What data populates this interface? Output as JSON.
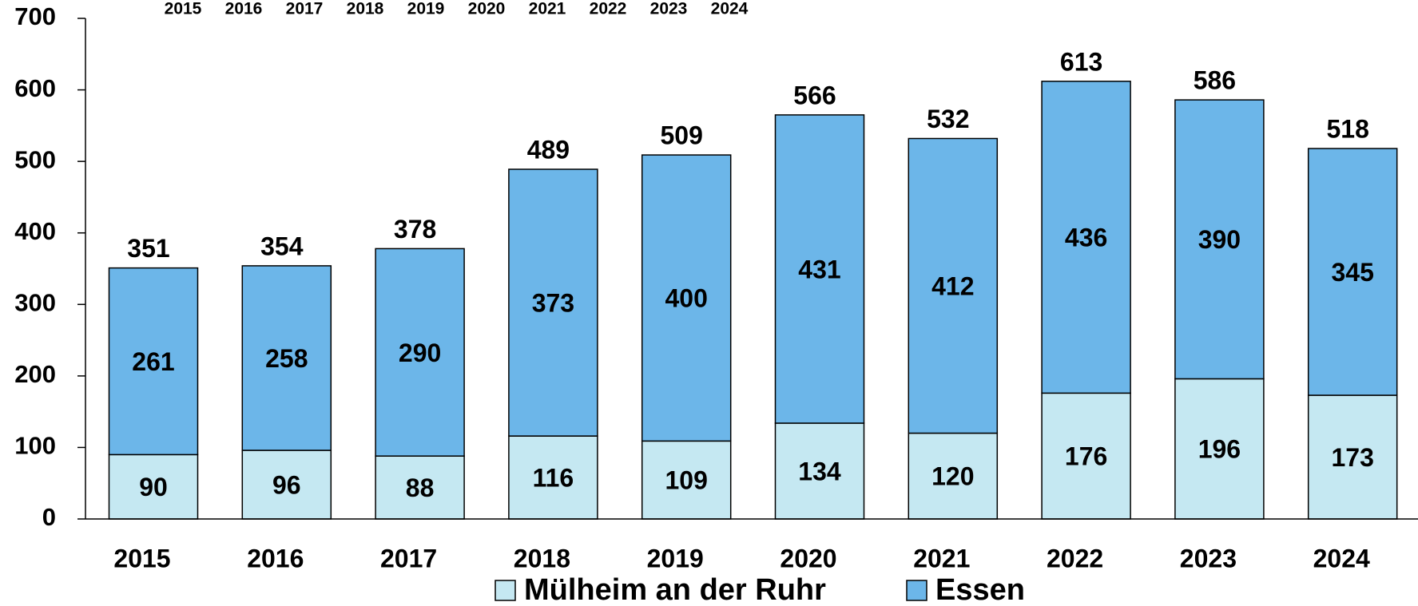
{
  "chart_data": {
    "type": "stacked_bar",
    "categories": [
      "2015",
      "2016",
      "2017",
      "2018",
      "2019",
      "2020",
      "2021",
      "2022",
      "2023",
      "2024"
    ],
    "series": [
      {
        "name": "Mülheim an der Ruhr",
        "color": "#c5e8f2",
        "values": [
          90,
          96,
          88,
          116,
          109,
          134,
          120,
          176,
          196,
          173
        ]
      },
      {
        "name": "Essen",
        "color": "#6cb6e9",
        "values": [
          261,
          258,
          290,
          373,
          400,
          431,
          412,
          436,
          390,
          345
        ]
      }
    ],
    "totals": [
      351,
      354,
      378,
      489,
      509,
      566,
      532,
      613,
      586,
      518
    ],
    "ylim": [
      0,
      700
    ],
    "yticks": [
      0,
      100,
      200,
      300,
      400,
      500,
      600,
      700
    ],
    "legend": "bottom"
  }
}
